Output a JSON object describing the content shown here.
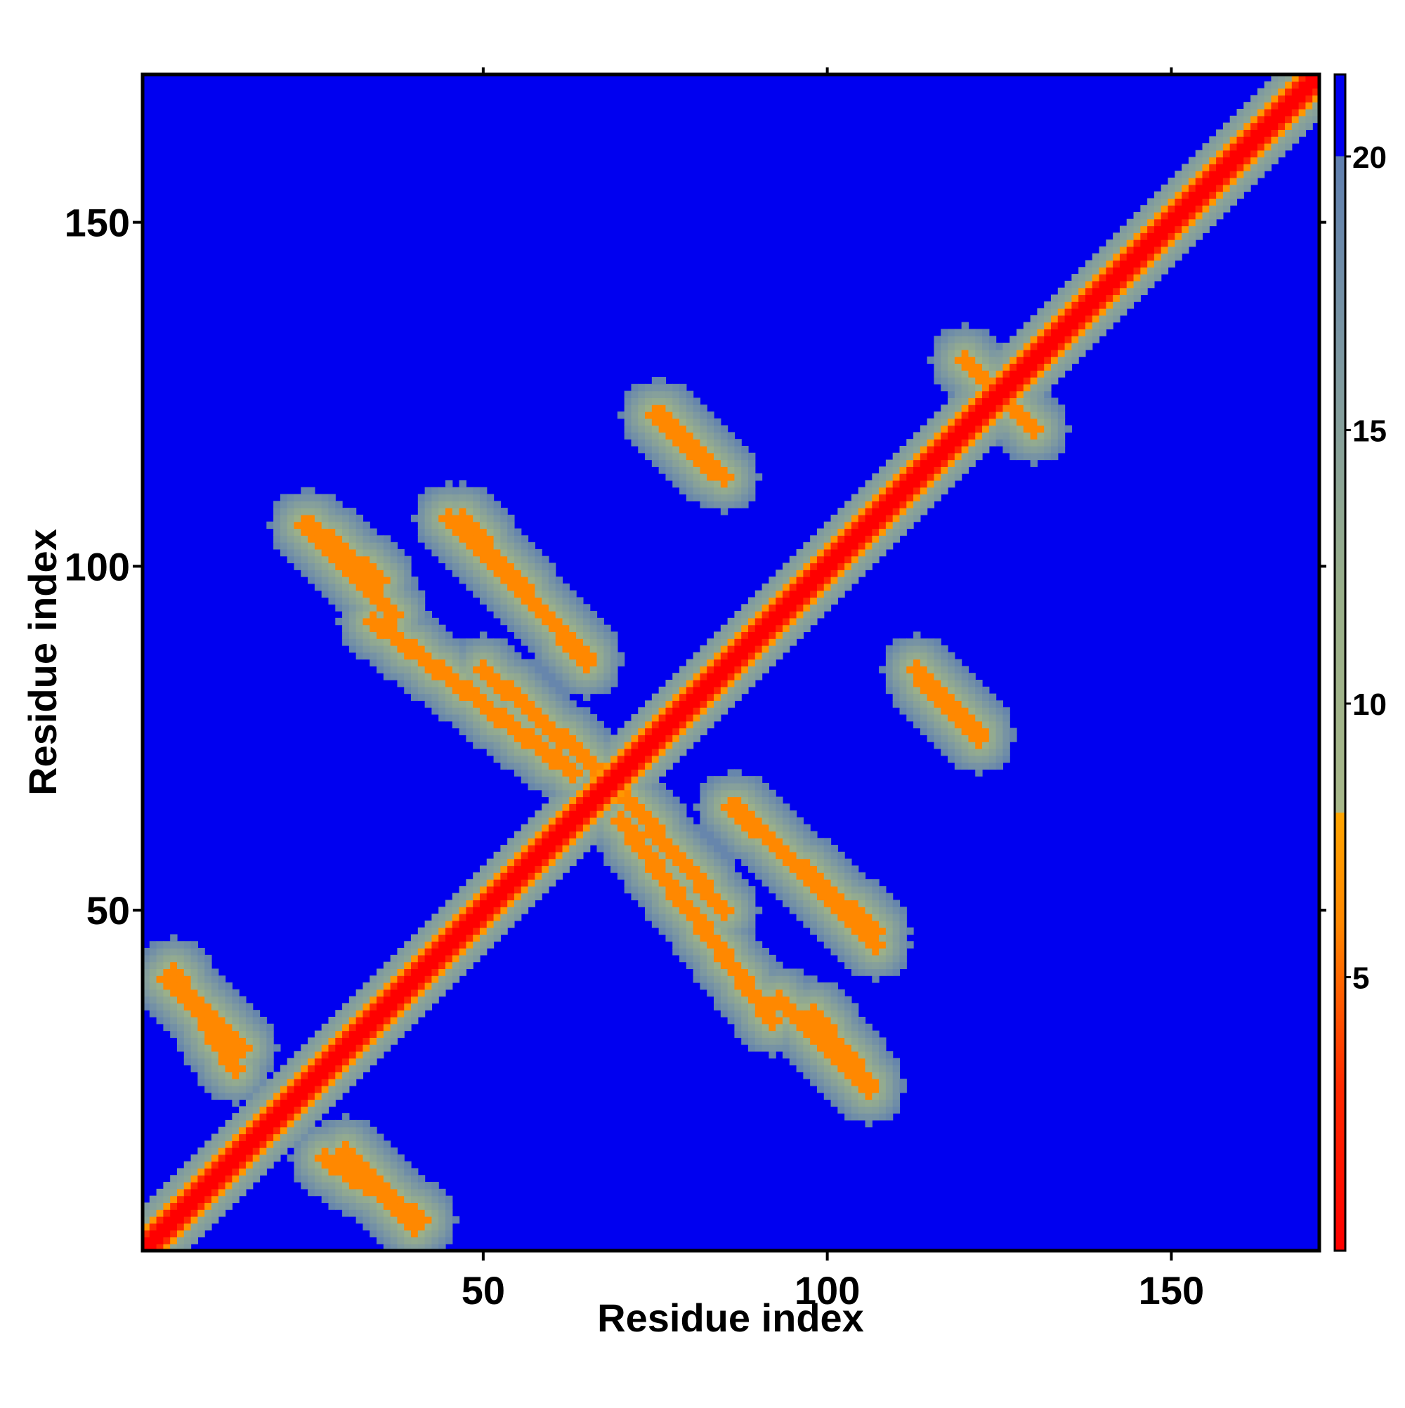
{
  "chart_data": {
    "type": "heatmap",
    "title": "",
    "xlabel": "Residue index",
    "ylabel": "Residue index",
    "xlim": [
      1,
      171
    ],
    "ylim": [
      1,
      171
    ],
    "x_ticks": [
      50,
      100,
      150
    ],
    "y_ticks": [
      50,
      100,
      150
    ],
    "x_tick_labels": [
      "50",
      "100",
      "150"
    ],
    "y_tick_labels": [
      "50",
      "100",
      "150"
    ],
    "n_residues": 171,
    "colorbar": {
      "range": [
        0,
        21.5
      ],
      "ticks": [
        5,
        10,
        15,
        20
      ],
      "tick_labels": [
        "5",
        "10",
        "15",
        "20"
      ],
      "stops": [
        {
          "value": 0,
          "color": "#ff0000"
        },
        {
          "value": 3,
          "color": "#ff2a00"
        },
        {
          "value": 6,
          "color": "#ff8800"
        },
        {
          "value": 8,
          "color": "#ffa500"
        },
        {
          "value": 8.01,
          "color": "#a8b88a"
        },
        {
          "value": 12,
          "color": "#9ab08a"
        },
        {
          "value": 16,
          "color": "#7f9aa0"
        },
        {
          "value": 20,
          "color": "#5f7fb0"
        },
        {
          "value": 20.01,
          "color": "#0000f0"
        },
        {
          "value": 21.5,
          "color": "#0000f0"
        }
      ]
    },
    "diagonal_distance": 0,
    "background_distance": 21,
    "contact_bands": [
      {
        "from": [
          25,
          106
        ],
        "to": [
          35,
          98
        ],
        "distance": 6
      },
      {
        "from": [
          34,
          92
        ],
        "to": [
          50,
          80
        ],
        "distance": 6
      },
      {
        "from": [
          50,
          80
        ],
        "to": [
          63,
          70
        ],
        "distance": 6
      },
      {
        "from": [
          47,
          107
        ],
        "to": [
          65,
          86
        ],
        "distance": 6
      },
      {
        "from": [
          75,
          122
        ],
        "to": [
          83,
          114
        ],
        "distance": 6
      },
      {
        "from": [
          4,
          40
        ],
        "to": [
          15,
          30
        ],
        "distance": 6
      },
      {
        "from": [
          27,
          14
        ],
        "to": [
          41,
          5
        ],
        "distance": 6
      },
      {
        "from": [
          71,
          66
        ],
        "to": [
          85,
          50
        ],
        "distance": 6
      },
      {
        "from": [
          87,
          65
        ],
        "to": [
          107,
          45
        ],
        "distance": 6
      },
      {
        "from": [
          93,
          37
        ],
        "to": [
          106,
          24
        ],
        "distance": 6
      },
      {
        "from": [
          113,
          85
        ],
        "to": [
          122,
          76
        ],
        "distance": 6
      },
      {
        "from": [
          122,
          128
        ],
        "to": [
          130,
          120
        ],
        "distance": 6
      }
    ]
  }
}
